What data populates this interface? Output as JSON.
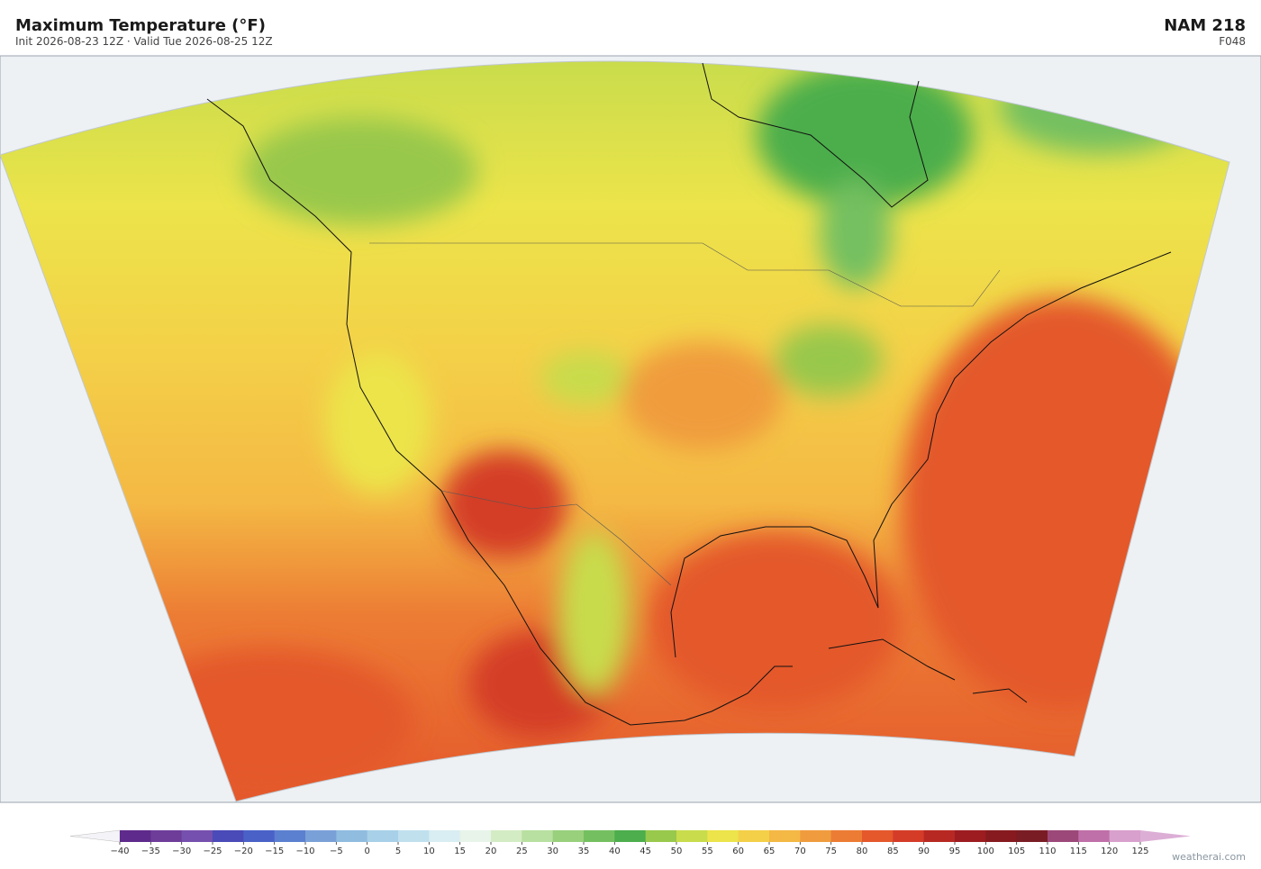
{
  "header": {
    "title": "Maximum Temperature  (°F)",
    "subtitle": "Init 2026-08-23 12Z  ·  Valid Tue 2026-08-25 12Z",
    "model": "NAM  218",
    "forecast_hour": "F048"
  },
  "colorbar": {
    "ticks": [
      {
        "value": -40,
        "label": "−40"
      },
      {
        "value": -35,
        "label": "−35"
      },
      {
        "value": -30,
        "label": "−30"
      },
      {
        "value": -25,
        "label": "−25"
      },
      {
        "value": -20,
        "label": "−20"
      },
      {
        "value": -15,
        "label": "−15"
      },
      {
        "value": -10,
        "label": "−10"
      },
      {
        "value": -5,
        "label": "−5"
      },
      0,
      5,
      10,
      15,
      20,
      25,
      30,
      35,
      40,
      45,
      50,
      55,
      60,
      65,
      70,
      75,
      80,
      85,
      90,
      95,
      100,
      105,
      110,
      115,
      120,
      125
    ],
    "colors": [
      "#5e2a8c",
      "#6e3d9a",
      "#7650ae",
      "#4a4ab8",
      "#4a62c8",
      "#5c80d0",
      "#7aa0d8",
      "#90bce0",
      "#a8d0e8",
      "#c0e0ee",
      "#d8eef2",
      "#e8f4ea",
      "#d4ecc4",
      "#b8e0a0",
      "#98d07c",
      "#74c060",
      "#4cae4c",
      "#98c84c",
      "#c8dc4c",
      "#ece44a",
      "#f4d048",
      "#f4b844",
      "#f09c3e",
      "#ec7c34",
      "#e4582c",
      "#d43c28",
      "#b82822",
      "#9c1c20",
      "#861a1e",
      "#7a1c24",
      "#9c4878",
      "#c070a8",
      "#d8a0cc"
    ],
    "under_color": "#f4f4f8",
    "over_color": "#dcaed6"
  },
  "footer": {
    "watermark": "weatherai.com"
  }
}
